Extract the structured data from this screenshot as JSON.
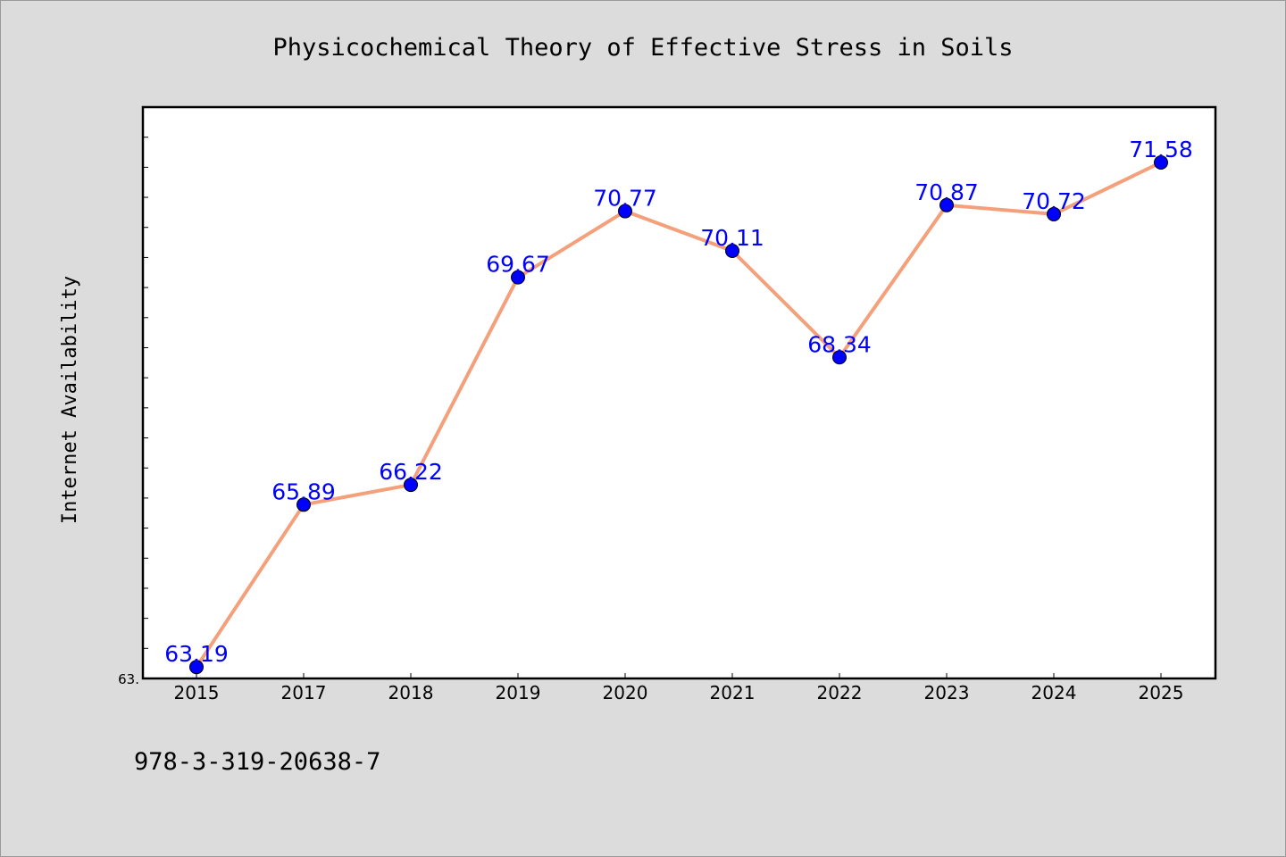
{
  "chart_data": {
    "type": "line",
    "title": "Physicochemical Theory of Effective Stress in Soils",
    "xlabel": "",
    "ylabel": "Internet Availability",
    "categories": [
      "2015",
      "2017",
      "2018",
      "2019",
      "2020",
      "2021",
      "2022",
      "2023",
      "2024",
      "2025"
    ],
    "series": [
      {
        "values": [
          63.19,
          65.89,
          66.22,
          69.67,
          70.77,
          70.11,
          68.34,
          70.87,
          70.72,
          71.58
        ],
        "labels": [
          "63.19",
          "65.89",
          "66.22",
          "69.67",
          "70.77",
          "70.11",
          "68.34",
          "70.87",
          "70.72",
          "71.58"
        ],
        "line_color": "#f4a07a",
        "marker_color": "#0000ff"
      }
    ],
    "ylim": [
      63.0,
      72.5
    ],
    "ytick_labels": [
      "63."
    ],
    "grid": false,
    "legend": "none"
  },
  "footer": {
    "isbn": "978-3-319-20638-7"
  }
}
